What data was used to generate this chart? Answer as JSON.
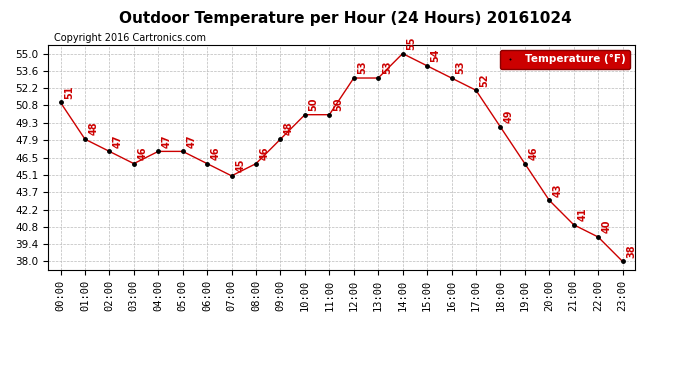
{
  "title": "Outdoor Temperature per Hour (24 Hours) 20161024",
  "copyright": "Copyright 2016 Cartronics.com",
  "legend_label": "Temperature (°F)",
  "hours": [
    "00:00",
    "01:00",
    "02:00",
    "03:00",
    "04:00",
    "05:00",
    "06:00",
    "07:00",
    "08:00",
    "09:00",
    "10:00",
    "11:00",
    "12:00",
    "13:00",
    "14:00",
    "15:00",
    "16:00",
    "17:00",
    "18:00",
    "19:00",
    "20:00",
    "21:00",
    "22:00",
    "23:00"
  ],
  "temps": [
    51,
    48,
    47,
    46,
    47,
    47,
    46,
    45,
    46,
    48,
    50,
    50,
    53,
    53,
    55,
    54,
    53,
    52,
    49,
    46,
    43,
    41,
    40,
    38
  ],
  "line_color": "#cc0000",
  "marker_color": "#000000",
  "label_color": "#cc0000",
  "bg_color": "#ffffff",
  "plot_bg_color": "#ffffff",
  "grid_color": "#bbbbbb",
  "legend_bg": "#cc0000",
  "legend_fg": "#ffffff",
  "ylim_min": 37.3,
  "ylim_max": 55.7,
  "yticks": [
    38.0,
    39.4,
    40.8,
    42.2,
    43.7,
    45.1,
    46.5,
    47.9,
    49.3,
    50.8,
    52.2,
    53.6,
    55.0
  ],
  "title_fontsize": 11,
  "copyright_fontsize": 7,
  "label_fontsize": 7,
  "tick_fontsize": 7.5
}
